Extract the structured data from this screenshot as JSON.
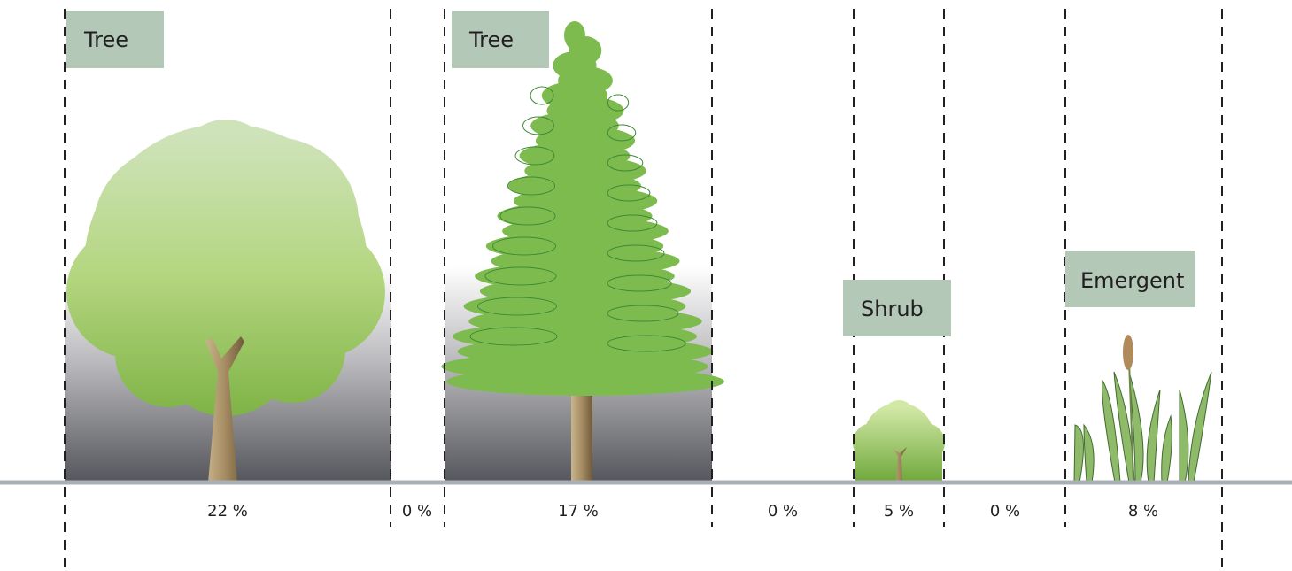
{
  "columns": [
    {
      "label": "Tree",
      "share": "22 %"
    },
    {
      "share": "0 %"
    },
    {
      "label": "Tree",
      "share": "17 %"
    },
    {
      "share": "0 %"
    },
    {
      "label": "Shrub",
      "share": "5 %"
    },
    {
      "share": "0 %"
    },
    {
      "label": "Emergent",
      "share": "8 %"
    }
  ]
}
